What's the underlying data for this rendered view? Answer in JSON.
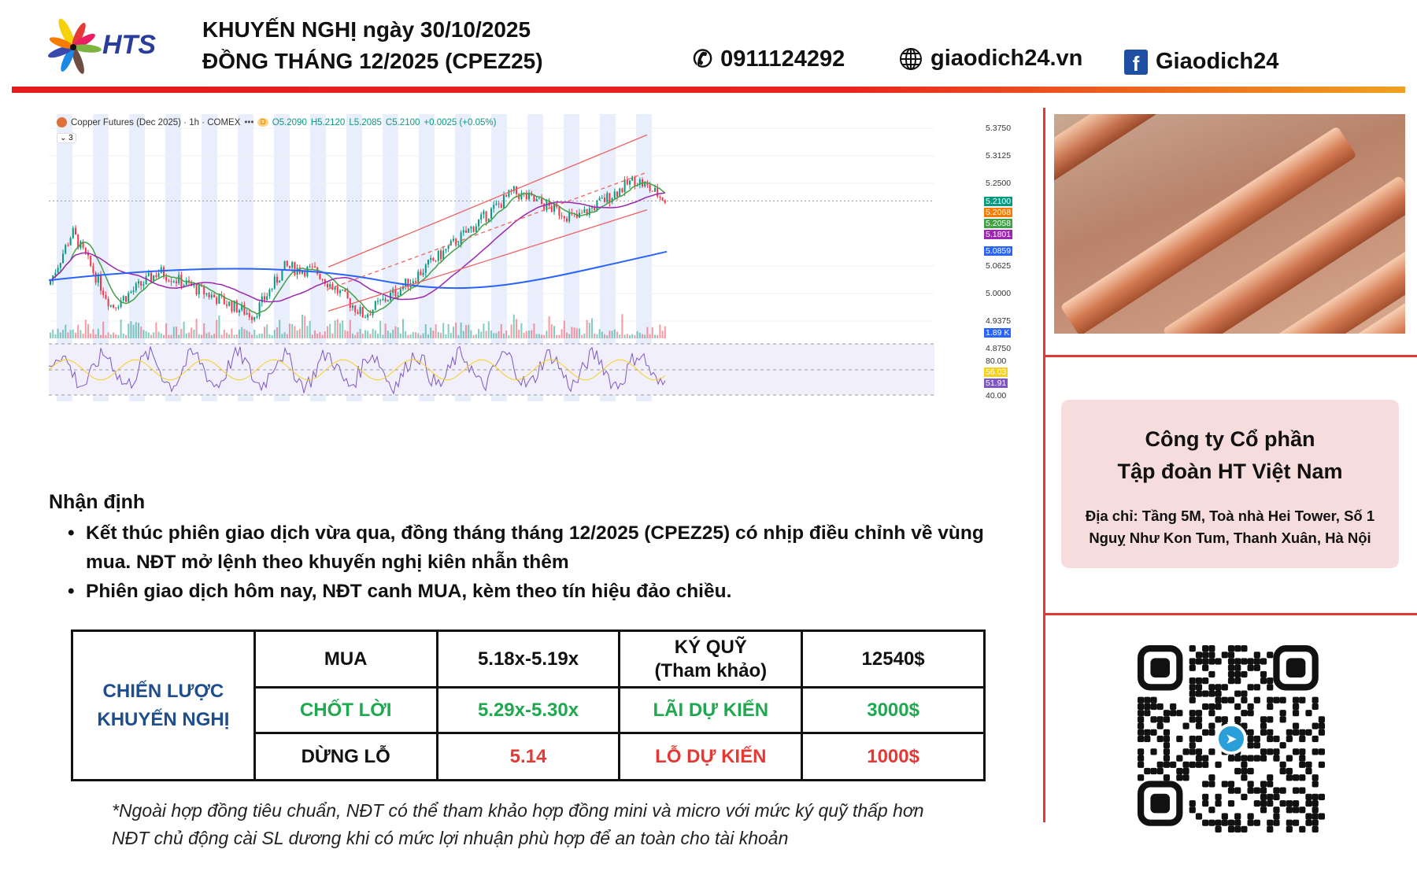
{
  "header": {
    "logo_text": "HTS",
    "title_line1": "KHUYẾN NGHỊ ngày 30/10/2025",
    "title_line2": "ĐỒNG THÁNG 12/2025 (CPEZ25)",
    "phone": "0911124292",
    "website": "giaodich24.vn",
    "facebook": "Giaodich24",
    "icons": [
      "phone-icon",
      "globe-icon",
      "facebook-icon"
    ]
  },
  "chart": {
    "symbol": "Copper Futures (Dec 2025) · 1h · COMEX",
    "more": "•••",
    "badge": "D",
    "ohlc": {
      "o": "O5.2090",
      "h": "H5.2120",
      "l": "L5.2085",
      "c": "C5.2100",
      "chg": "+0.0025 (+0.05%)"
    },
    "indicators_toggle": "⌄ 3",
    "price_ticks": [
      "5.3750",
      "5.3125",
      "5.2500",
      "5.0625",
      "5.0000",
      "4.9375",
      "4.8750"
    ],
    "price_labels": [
      {
        "text": "5.2100",
        "color": "#089981"
      },
      {
        "text": "5.2068",
        "color": "#f57c00"
      },
      {
        "text": "5.2058",
        "color": "#43a047"
      },
      {
        "text": "5.1801",
        "color": "#9c27b0"
      },
      {
        "text": "5.0859",
        "color": "#2962ff"
      }
    ],
    "volume_label": {
      "text": "1.89 K",
      "color": "#2962ff"
    },
    "rsi_ticks": [
      "80.00",
      "40.00"
    ],
    "rsi_labels": [
      {
        "text": "56.03",
        "color": "#f5d120"
      },
      {
        "text": "51.91",
        "color": "#7e57c2"
      }
    ]
  },
  "side": {
    "company_line1": "Công ty Cổ phần",
    "company_line2": "Tập đoàn HT Việt Nam",
    "address_line1": "Địa chỉ: Tầng 5M, Toà nhà Hei Tower, Số 1",
    "address_line2": "Nguỵ Như Kon Tum, Thanh Xuân, Hà Nội",
    "qr_center_icon": "telegram-icon"
  },
  "analysis": {
    "heading": "Nhận định",
    "bullets": [
      "Kết thúc phiên giao dịch vừa qua, đồng tháng tháng 12/2025 (CPEZ25) có nhịp điều chỉnh về vùng mua. NĐT mở lệnh theo khuyến nghị kiên nhẫn thêm",
      "Phiên giao dịch hôm nay, NĐT canh MUA, kèm theo tín hiệu đảo chiều."
    ]
  },
  "strategy": {
    "label": "CHIẾN LƯỢC KHUYẾN NGHỊ",
    "rows": [
      {
        "action": "MUA",
        "price": "5.18x-5.19x",
        "metric": "KÝ QUỸ\n(Tham khảo)",
        "value": "12540$",
        "color": "#111111"
      },
      {
        "action": "CHỐT LỜI",
        "price": "5.29x-5.30x",
        "metric": "LÃI DỰ KIẾN",
        "value": "3000$",
        "color": "#1fa84f"
      },
      {
        "action": "DỪNG LỖ",
        "price": "5.14",
        "metric": "LỖ DỰ KIẾN",
        "value": "1000$",
        "color": "#e53935"
      }
    ]
  },
  "footnote": {
    "line1": "*Ngoài hợp đồng tiêu chuẩn, NĐT có thể tham khảo hợp đồng mini và micro với mức ký quỹ thấp hơn",
    "line2": "NĐT chủ động cài SL dương khi có mức lợi nhuận phù hợp để an toàn cho tài khoản"
  },
  "colors": {
    "accent_red": "#e53935",
    "brand_blue": "#1f4e8c",
    "buy_green": "#1fa84f"
  }
}
